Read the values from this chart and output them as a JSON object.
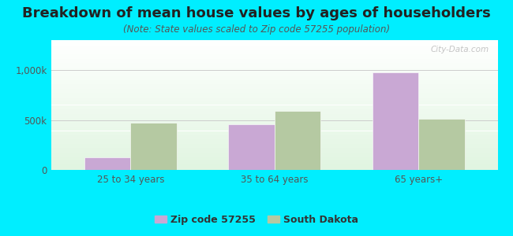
{
  "title": "Breakdown of mean house values by ages of householders",
  "subtitle": "(Note: State values scaled to Zip code 57255 population)",
  "categories": [
    "25 to 34 years",
    "35 to 64 years",
    "65 years+"
  ],
  "zip_values": [
    125000,
    460000,
    975000
  ],
  "state_values": [
    470000,
    590000,
    510000
  ],
  "zip_color": "#c9a8d4",
  "state_color": "#b5c9a2",
  "background_color": "#00eeff",
  "ytick_labels": [
    "0",
    "500k",
    "1,000k"
  ],
  "ylim": [
    0,
    1300000
  ],
  "legend_zip_label": "Zip code 57255",
  "legend_state_label": "South Dakota",
  "bar_width": 0.32,
  "title_fontsize": 13,
  "subtitle_fontsize": 8.5,
  "axis_fontsize": 8.5,
  "legend_fontsize": 9,
  "watermark_text": "City-Data.com"
}
